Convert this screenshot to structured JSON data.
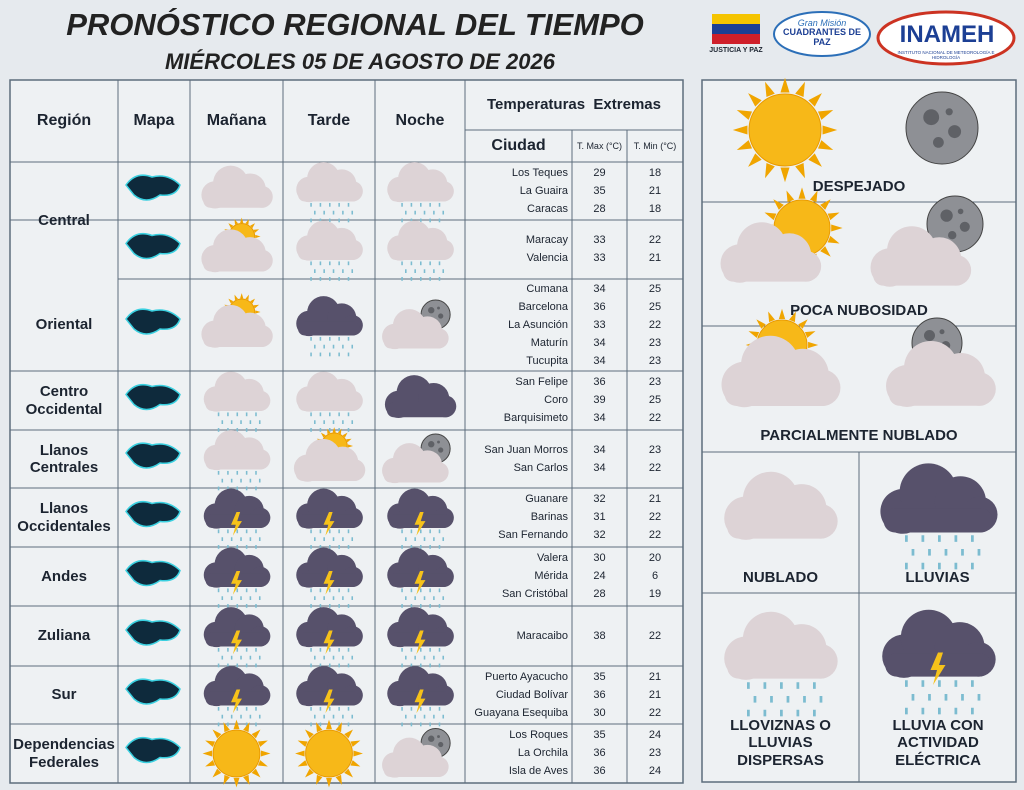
{
  "header": {
    "title": "PRONÓSTICO REGIONAL DEL TIEMPO",
    "subtitle": "MIÉRCOLES 05 DE AGOSTO DE 2026"
  },
  "logos": {
    "justicia": "JUSTICIA Y PAZ",
    "gran_mision": "Gran Misión",
    "cuadrantes": "CUADRANTES DE PAZ",
    "inameh": "INAMEH",
    "inameh_full": "INSTITUTO NACIONAL DE METEOROLOGÍA E HIDROLOGÍA"
  },
  "table": {
    "headers": {
      "region": "Región",
      "mapa": "Mapa",
      "manana": "Mañana",
      "tarde": "Tarde",
      "noche": "Noche",
      "temperaturas": "Temperaturas  Extremas",
      "ciudad": "Ciudad",
      "tmax": "T. Max (°C)",
      "tmin": "T. Min (°C)"
    },
    "regions": [
      {
        "name": "Central",
        "rows": [
          {
            "cities": [
              {
                "name": "Los Teques",
                "max": "29",
                "min": "18"
              },
              {
                "name": "La Guaira",
                "max": "35",
                "min": "21"
              },
              {
                "name": "Caracas",
                "max": "28",
                "min": "18"
              }
            ]
          },
          {
            "cities": [
              {
                "name": "Maracay",
                "max": "33",
                "min": "22"
              },
              {
                "name": "Valencia",
                "max": "33",
                "min": "21"
              }
            ]
          }
        ]
      },
      {
        "name": "Oriental",
        "rows": [
          {
            "cities": [
              {
                "name": "Cumana",
                "max": "34",
                "min": "25"
              },
              {
                "name": "Barcelona",
                "max": "36",
                "min": "25"
              },
              {
                "name": "La Asunción",
                "max": "33",
                "min": "22"
              },
              {
                "name": "Maturín",
                "max": "34",
                "min": "23"
              },
              {
                "name": "Tucupita",
                "max": "34",
                "min": "23"
              }
            ]
          }
        ]
      },
      {
        "name": "Centro Occidental",
        "rows": [
          {
            "cities": [
              {
                "name": "San Felipe",
                "max": "36",
                "min": "23"
              },
              {
                "name": "Coro",
                "max": "39",
                "min": "25"
              },
              {
                "name": "Barquisimeto",
                "max": "34",
                "min": "22"
              }
            ]
          }
        ]
      },
      {
        "name": "Llanos Centrales",
        "rows": [
          {
            "cities": [
              {
                "name": "San Juan Morros",
                "max": "34",
                "min": "23"
              },
              {
                "name": "San Carlos",
                "max": "34",
                "min": "22"
              }
            ]
          }
        ]
      },
      {
        "name": "Llanos Occidentales",
        "rows": [
          {
            "cities": [
              {
                "name": "Guanare",
                "max": "32",
                "min": "21"
              },
              {
                "name": "Barinas",
                "max": "31",
                "min": "22"
              },
              {
                "name": "San Fernando",
                "max": "32",
                "min": "22"
              }
            ]
          }
        ]
      },
      {
        "name": "Andes",
        "rows": [
          {
            "cities": [
              {
                "name": "Valera",
                "max": "30",
                "min": "20"
              },
              {
                "name": "Mérida",
                "max": "24",
                "min": "6"
              },
              {
                "name": "San Cristóbal",
                "max": "28",
                "min": "19"
              }
            ]
          }
        ]
      },
      {
        "name": "Zuliana",
        "rows": [
          {
            "cities": [
              {
                "name": "Maracaibo",
                "max": "38",
                "min": "22"
              }
            ]
          }
        ]
      },
      {
        "name": "Sur",
        "rows": [
          {
            "cities": [
              {
                "name": "Puerto Ayacucho",
                "max": "35",
                "min": "21"
              },
              {
                "name": "Ciudad Bolívar",
                "max": "36",
                "min": "21"
              },
              {
                "name": "Guayana Esequiba",
                "max": "30",
                "min": "22"
              }
            ]
          }
        ]
      },
      {
        "name": "Dependencias Federales",
        "rows": [
          {
            "cities": [
              {
                "name": "Los Roques",
                "max": "35",
                "min": "24"
              },
              {
                "name": "La Orchila",
                "max": "36",
                "min": "23"
              },
              {
                "name": "Isla de Aves",
                "max": "36",
                "min": "24"
              }
            ]
          }
        ]
      }
    ]
  },
  "legend": {
    "despejado": "DESPEJADO",
    "poca": "POCA NUBOSIDAD",
    "parcial": "PARCIALMENTE NUBLADO",
    "nublado": "NUBLADO",
    "lluvias": "LLUVIAS",
    "lloviznas": "LLOVIZNAS O LLUVIAS DISPERSAS",
    "electrica": "LLUVIA CON ACTIVIDAD ELÉCTRICA"
  }
}
